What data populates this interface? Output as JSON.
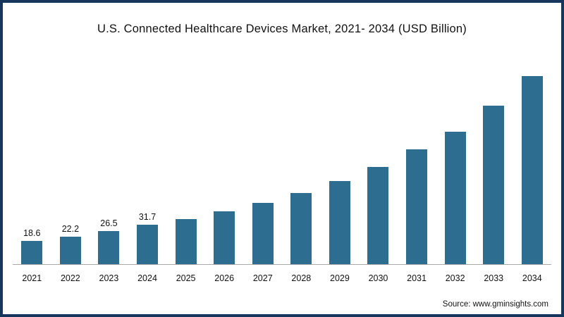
{
  "title": "U.S. Connected Healthcare Devices Market, 2021- 2034 (USD Billion)",
  "source": "Source: www.gminsights.com",
  "colors": {
    "bar": "#2d6d8f",
    "frame_border": "#16365c",
    "axis_line": "#a9a9a9",
    "text": "#111111"
  },
  "chart_data": {
    "type": "bar",
    "title": "U.S. Connected Healthcare Devices Market, 2021- 2034 (USD Billion)",
    "xlabel": "",
    "ylabel": "",
    "categories": [
      "2021",
      "2022",
      "2023",
      "2024",
      "2025",
      "2026",
      "2027",
      "2028",
      "2029",
      "2030",
      "2031",
      "2032",
      "2033",
      "2034"
    ],
    "values": [
      18.6,
      22.2,
      26.5,
      31.7,
      36.2,
      42.4,
      49.2,
      57.1,
      66.7,
      78.0,
      92.1,
      106.2,
      127.1,
      150.8
    ],
    "value_labels": [
      "18.6",
      "22.2",
      "26.5",
      "31.7",
      "",
      "",
      "",
      "",
      "",
      "",
      "",
      "",
      "",
      ""
    ],
    "ylim": [
      0,
      160
    ],
    "grid": false,
    "legend": "none",
    "bar_color": "#2d6d8f",
    "note": "Only 2021-2024 bars show printed data labels; later values estimated from bar heights"
  }
}
